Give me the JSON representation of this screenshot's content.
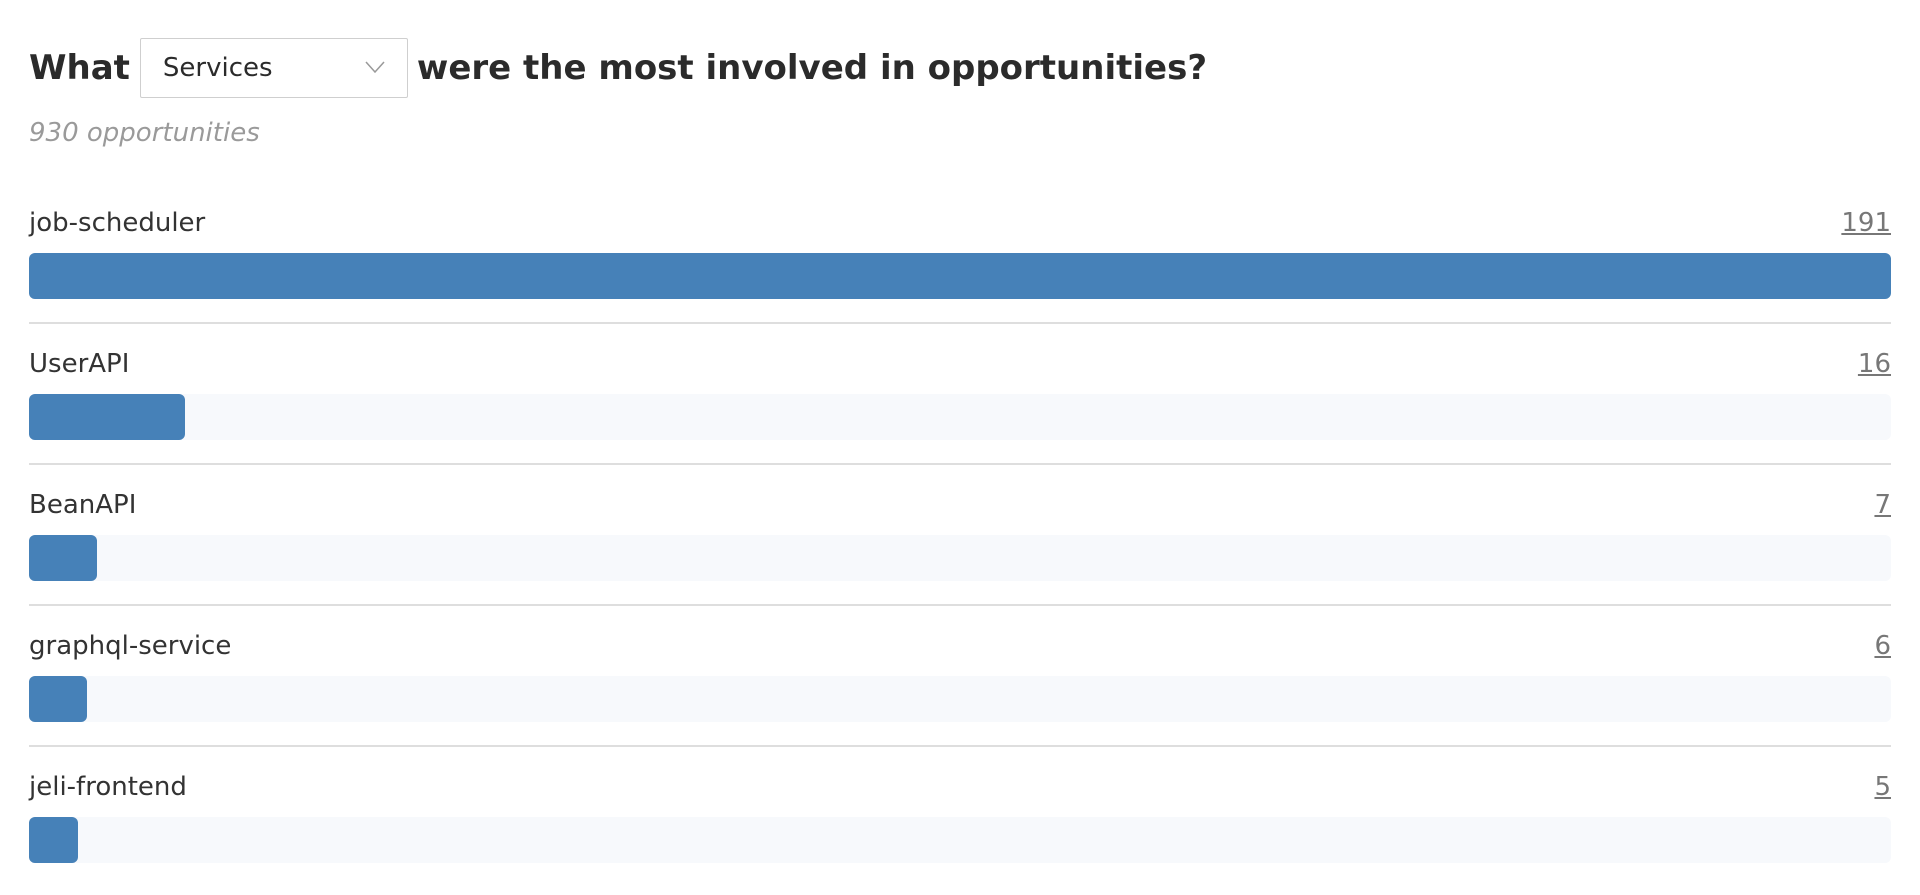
{
  "question": {
    "prefix": "What",
    "selected": "Services",
    "suffix": "were the most involved in opportunities?"
  },
  "subtitle": "930 opportunities",
  "bar_color": "#4681b8",
  "rows": [
    {
      "label": "job-scheduler",
      "value": 191
    },
    {
      "label": "UserAPI",
      "value": 16
    },
    {
      "label": "BeanAPI",
      "value": 7
    },
    {
      "label": "graphql-service",
      "value": 6
    },
    {
      "label": "jeli-frontend",
      "value": 5
    }
  ]
}
